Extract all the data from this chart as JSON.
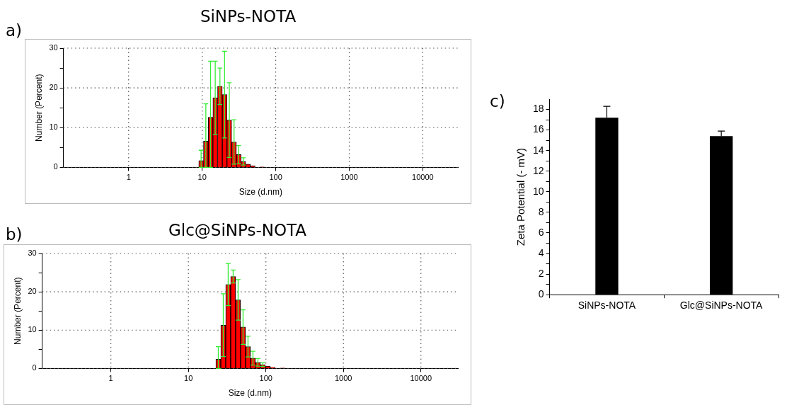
{
  "chart_data": [
    {
      "type": "histogram",
      "title": "SiNPs-NOTA",
      "annotations": [
        "a)"
      ],
      "xlabel": "Size (d.nm)",
      "ylabel": "Number (Percent)",
      "log": "x",
      "color": "#ff0000",
      "bins": [
        9.0,
        10.4,
        12.1,
        14.0,
        16.2,
        18.8,
        21.7,
        25.2,
        29.2,
        33.8,
        39.1,
        45.3,
        52.5,
        60.8,
        70.4
      ],
      "values": [
        1.7,
        6.6,
        12.6,
        17.5,
        20.4,
        18.3,
        11.9,
        6.4,
        3.2,
        1.5,
        0.8,
        0.4,
        null,
        0.1
      ],
      "errors": [
        [
          0,
          4.3
        ],
        [
          0,
          16.0
        ],
        [
          0,
          26.7
        ],
        9.2,
        4.6,
        10.9,
        9.4,
        5.6,
        2.3,
        0.9,
        null,
        null,
        null,
        null
      ],
      "xlim": [
        0.13,
        30000
      ],
      "xticks": [
        1,
        10,
        100,
        1000,
        10000
      ],
      "ylim": [
        0,
        30
      ],
      "yticks": [
        0,
        {
          "value": 5,
          "label": null
        },
        10,
        {
          "value": 15,
          "label": null
        },
        20,
        {
          "value": 25,
          "label": null
        },
        30
      ],
      "grid": true
    },
    {
      "type": "histogram",
      "title": "Glc@SiNPs-NOTA",
      "annotations": [
        "b)"
      ],
      "xlabel": "Size (d.nm)",
      "ylabel": "Number (Percent)",
      "log": "x",
      "color": "#ff0000",
      "bins": [
        22.6,
        26.2,
        30.3,
        35.1,
        40.7,
        47.1,
        54.6,
        63.2,
        73.2,
        84.8,
        98.2,
        114,
        132,
        153,
        177
      ],
      "values": [
        2.4,
        11.3,
        21.9,
        24.0,
        17.9,
        10.8,
        5.7,
        2.7,
        1.6,
        1.0,
        0.6,
        0.3,
        null,
        0.1
      ],
      "errors": [
        [
          0,
          5.7
        ],
        8.2,
        5.5,
        1.7,
        5.3,
        4.5,
        2.7,
        1.8,
        1.0,
        0.5,
        null,
        null,
        null,
        null
      ],
      "xlim": [
        0.13,
        30000
      ],
      "xticks": [
        1,
        10,
        100,
        1000,
        10000
      ],
      "ylim": [
        0,
        30
      ],
      "yticks": [
        0,
        {
          "value": 5,
          "label": null
        },
        10,
        {
          "value": 15,
          "label": null
        },
        20,
        {
          "value": 25,
          "label": null
        },
        30
      ],
      "grid": true
    },
    {
      "type": "bar",
      "annotations": [
        "c)"
      ],
      "ylabel": "Zeta Potential (- mV)",
      "categories": [
        "SiNPs-NOTA",
        "Glc@SiNPs-NOTA"
      ],
      "color": "#000000",
      "values": [
        17.2,
        15.4
      ],
      "errors": [
        [
          17.2,
          18.3
        ],
        [
          15.4,
          15.9
        ]
      ],
      "ylim": [
        0,
        19
      ],
      "yticks": [
        0,
        {
          "value": 1,
          "label": null
        },
        2,
        {
          "value": 3,
          "label": null
        },
        4,
        {
          "value": 5,
          "label": null
        },
        6,
        {
          "value": 7,
          "label": null
        },
        8,
        {
          "value": 9,
          "label": null
        },
        10,
        {
          "value": 11,
          "label": null
        },
        12,
        {
          "value": 13,
          "label": null
        },
        14,
        {
          "value": 15,
          "label": null
        },
        16,
        {
          "value": 17,
          "label": null
        },
        18
      ]
    }
  ]
}
